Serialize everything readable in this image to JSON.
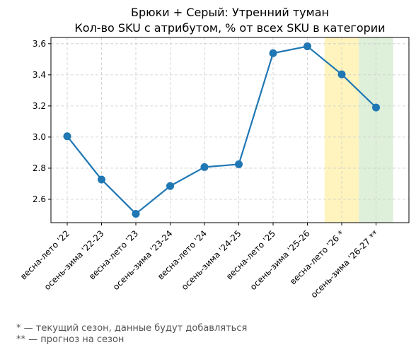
{
  "chart_data": {
    "type": "line",
    "title": "Брюки + Серый: Утренний туман",
    "subtitle": "Кол-во SKU с атрибутом, % от всех SKU в категории",
    "xlabel": "",
    "ylabel": "",
    "categories": [
      "весна-лето '22",
      "осень-зима '22-23",
      "весна-лето '23",
      "осень-зима '23-24",
      "весна-лето '24",
      "осень-зима '24-25",
      "весна-лето '25",
      "осень-зима '25-26",
      "весна-лето '26 *",
      "осень-зима '26-27 **"
    ],
    "series": [
      {
        "values": [
          3.005,
          2.727,
          2.507,
          2.685,
          2.807,
          2.825,
          3.539,
          3.583,
          3.403,
          3.19
        ]
      }
    ],
    "ylim": [
      2.45,
      3.64
    ],
    "yticks": [
      2.6,
      2.8,
      3.0,
      3.2,
      3.4,
      3.6
    ],
    "ytick_labels": [
      "2.6",
      "2.8",
      "3.0",
      "3.2",
      "3.4",
      "3.6"
    ],
    "grid": true,
    "line_color": "#1f77b4",
    "highlights": [
      {
        "index": 8,
        "color": "#fff2b3"
      },
      {
        "index": 9,
        "color": "#d8ecd4"
      }
    ]
  },
  "footnotes": {
    "current": "* — текущий сезон, данные будут добавляться",
    "forecast": "** — прогноз на сезон"
  }
}
